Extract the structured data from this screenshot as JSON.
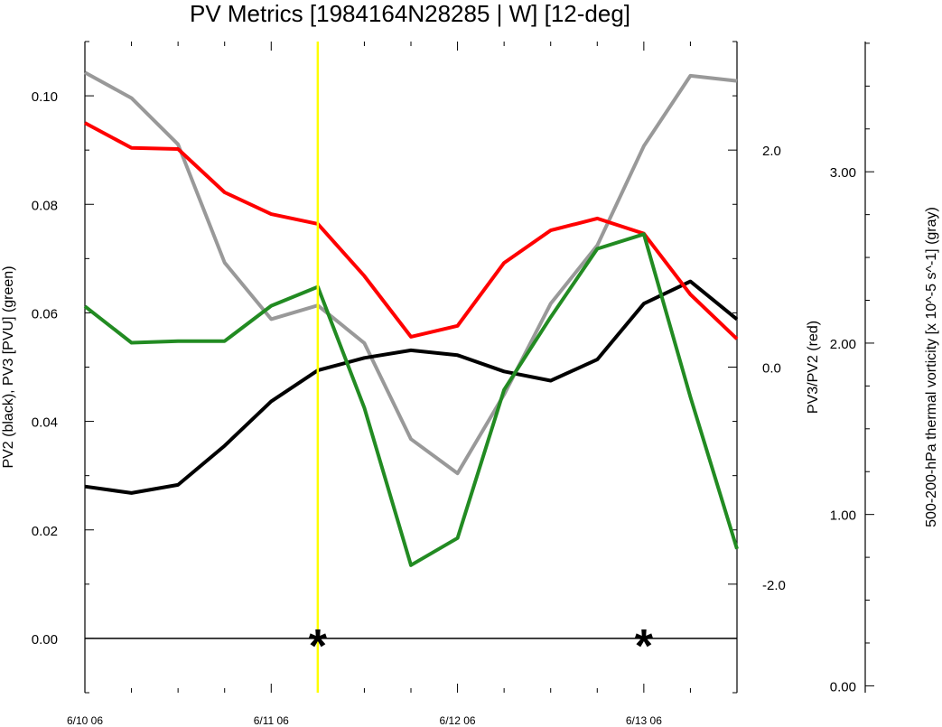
{
  "chart_data": {
    "type": "line",
    "title": "PV Metrics [1984164N28285 | W] [12-deg]",
    "x_ticks": [
      {
        "label": "6/10 06",
        "t": 0
      },
      {
        "label": "6/11 06",
        "t": 24
      },
      {
        "label": "6/12 06",
        "t": 48
      },
      {
        "label": "6/13 06",
        "t": 72
      }
    ],
    "x": [
      0,
      6,
      12,
      18,
      24,
      30,
      36,
      42,
      48,
      54,
      60,
      66,
      72,
      78,
      84
    ],
    "xlim": [
      0,
      84
    ],
    "left_axis": {
      "label": "PV2 (black), PV3 [PVU] (green)",
      "ylim": [
        -0.01,
        0.11
      ],
      "ticks": [
        0.0,
        0.02,
        0.04,
        0.06,
        0.08,
        0.1
      ],
      "tick_labels": [
        "0.00",
        "0.02",
        "0.04",
        "0.06",
        "0.08",
        "0.10"
      ]
    },
    "right_axis_1": {
      "label": "PV3/PV2 (red)",
      "ylim": [
        -3.0,
        3.0
      ],
      "ticks": [
        -2.0,
        0.0,
        2.0
      ],
      "tick_labels": [
        "-2.0",
        "0.0",
        "2.0"
      ]
    },
    "right_axis_2": {
      "label": "500-200-hPa thermal vorticity [x 10^-5 s^-1] (gray)",
      "ylim": [
        -0.04,
        3.76
      ],
      "ticks": [
        0.0,
        1.0,
        2.0,
        3.0
      ],
      "tick_labels": [
        "0.00",
        "1.00",
        "2.00",
        "3.00"
      ]
    },
    "series": [
      {
        "name": "PV2",
        "axis": "left",
        "color": "#000000",
        "values": [
          0.028,
          0.0268,
          0.0283,
          0.0355,
          0.0437,
          0.0494,
          0.0517,
          0.0531,
          0.0522,
          0.0492,
          0.0475,
          0.0514,
          0.0617,
          0.0658,
          0.0588
        ]
      },
      {
        "name": "PV3",
        "axis": "left",
        "color": "#228b22",
        "values": [
          0.0612,
          0.0545,
          0.0548,
          0.0548,
          0.0613,
          0.0648,
          0.0425,
          0.0135,
          0.0185,
          0.0458,
          0.0592,
          0.0718,
          0.0745,
          0.0445,
          0.0165
        ]
      },
      {
        "name": "PV3/PV2",
        "axis": "right_1",
        "color": "#ff0000",
        "values": [
          2.25,
          2.02,
          2.01,
          1.61,
          1.41,
          1.32,
          0.84,
          0.28,
          0.38,
          0.96,
          1.26,
          1.37,
          1.23,
          0.67,
          0.26
        ]
      },
      {
        "name": "thermal vorticity",
        "axis": "right_2",
        "color": "#999999",
        "values": [
          3.58,
          3.43,
          3.16,
          2.47,
          2.14,
          2.22,
          2.0,
          1.44,
          1.24,
          1.7,
          2.23,
          2.57,
          3.15,
          3.56,
          3.53
        ]
      }
    ],
    "marker_line": {
      "t": 30,
      "color": "#ffff00"
    },
    "zero_line_value": 0,
    "asterisks": [
      {
        "symbol": "*",
        "t": 30,
        "y": 0
      },
      {
        "symbol": "*",
        "t": 72,
        "y": 0
      }
    ]
  }
}
